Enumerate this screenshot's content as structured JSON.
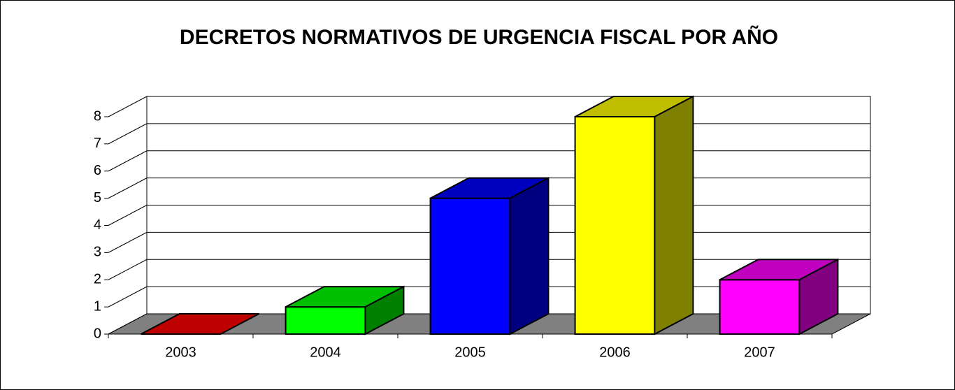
{
  "chart_data": {
    "type": "bar3d",
    "title": "DECRETOS NORMATIVOS DE URGENCIA FISCAL POR AÑO",
    "categories": [
      "2003",
      "2004",
      "2005",
      "2006",
      "2007"
    ],
    "values": [
      0,
      1,
      5,
      8,
      2
    ],
    "colors": [
      "#ff0000",
      "#00ff00",
      "#0000ff",
      "#ffff00",
      "#ff00ff"
    ],
    "ylim": [
      0,
      8
    ],
    "yticks": [
      0,
      1,
      2,
      3,
      4,
      5,
      6,
      7,
      8
    ],
    "grid": true
  }
}
